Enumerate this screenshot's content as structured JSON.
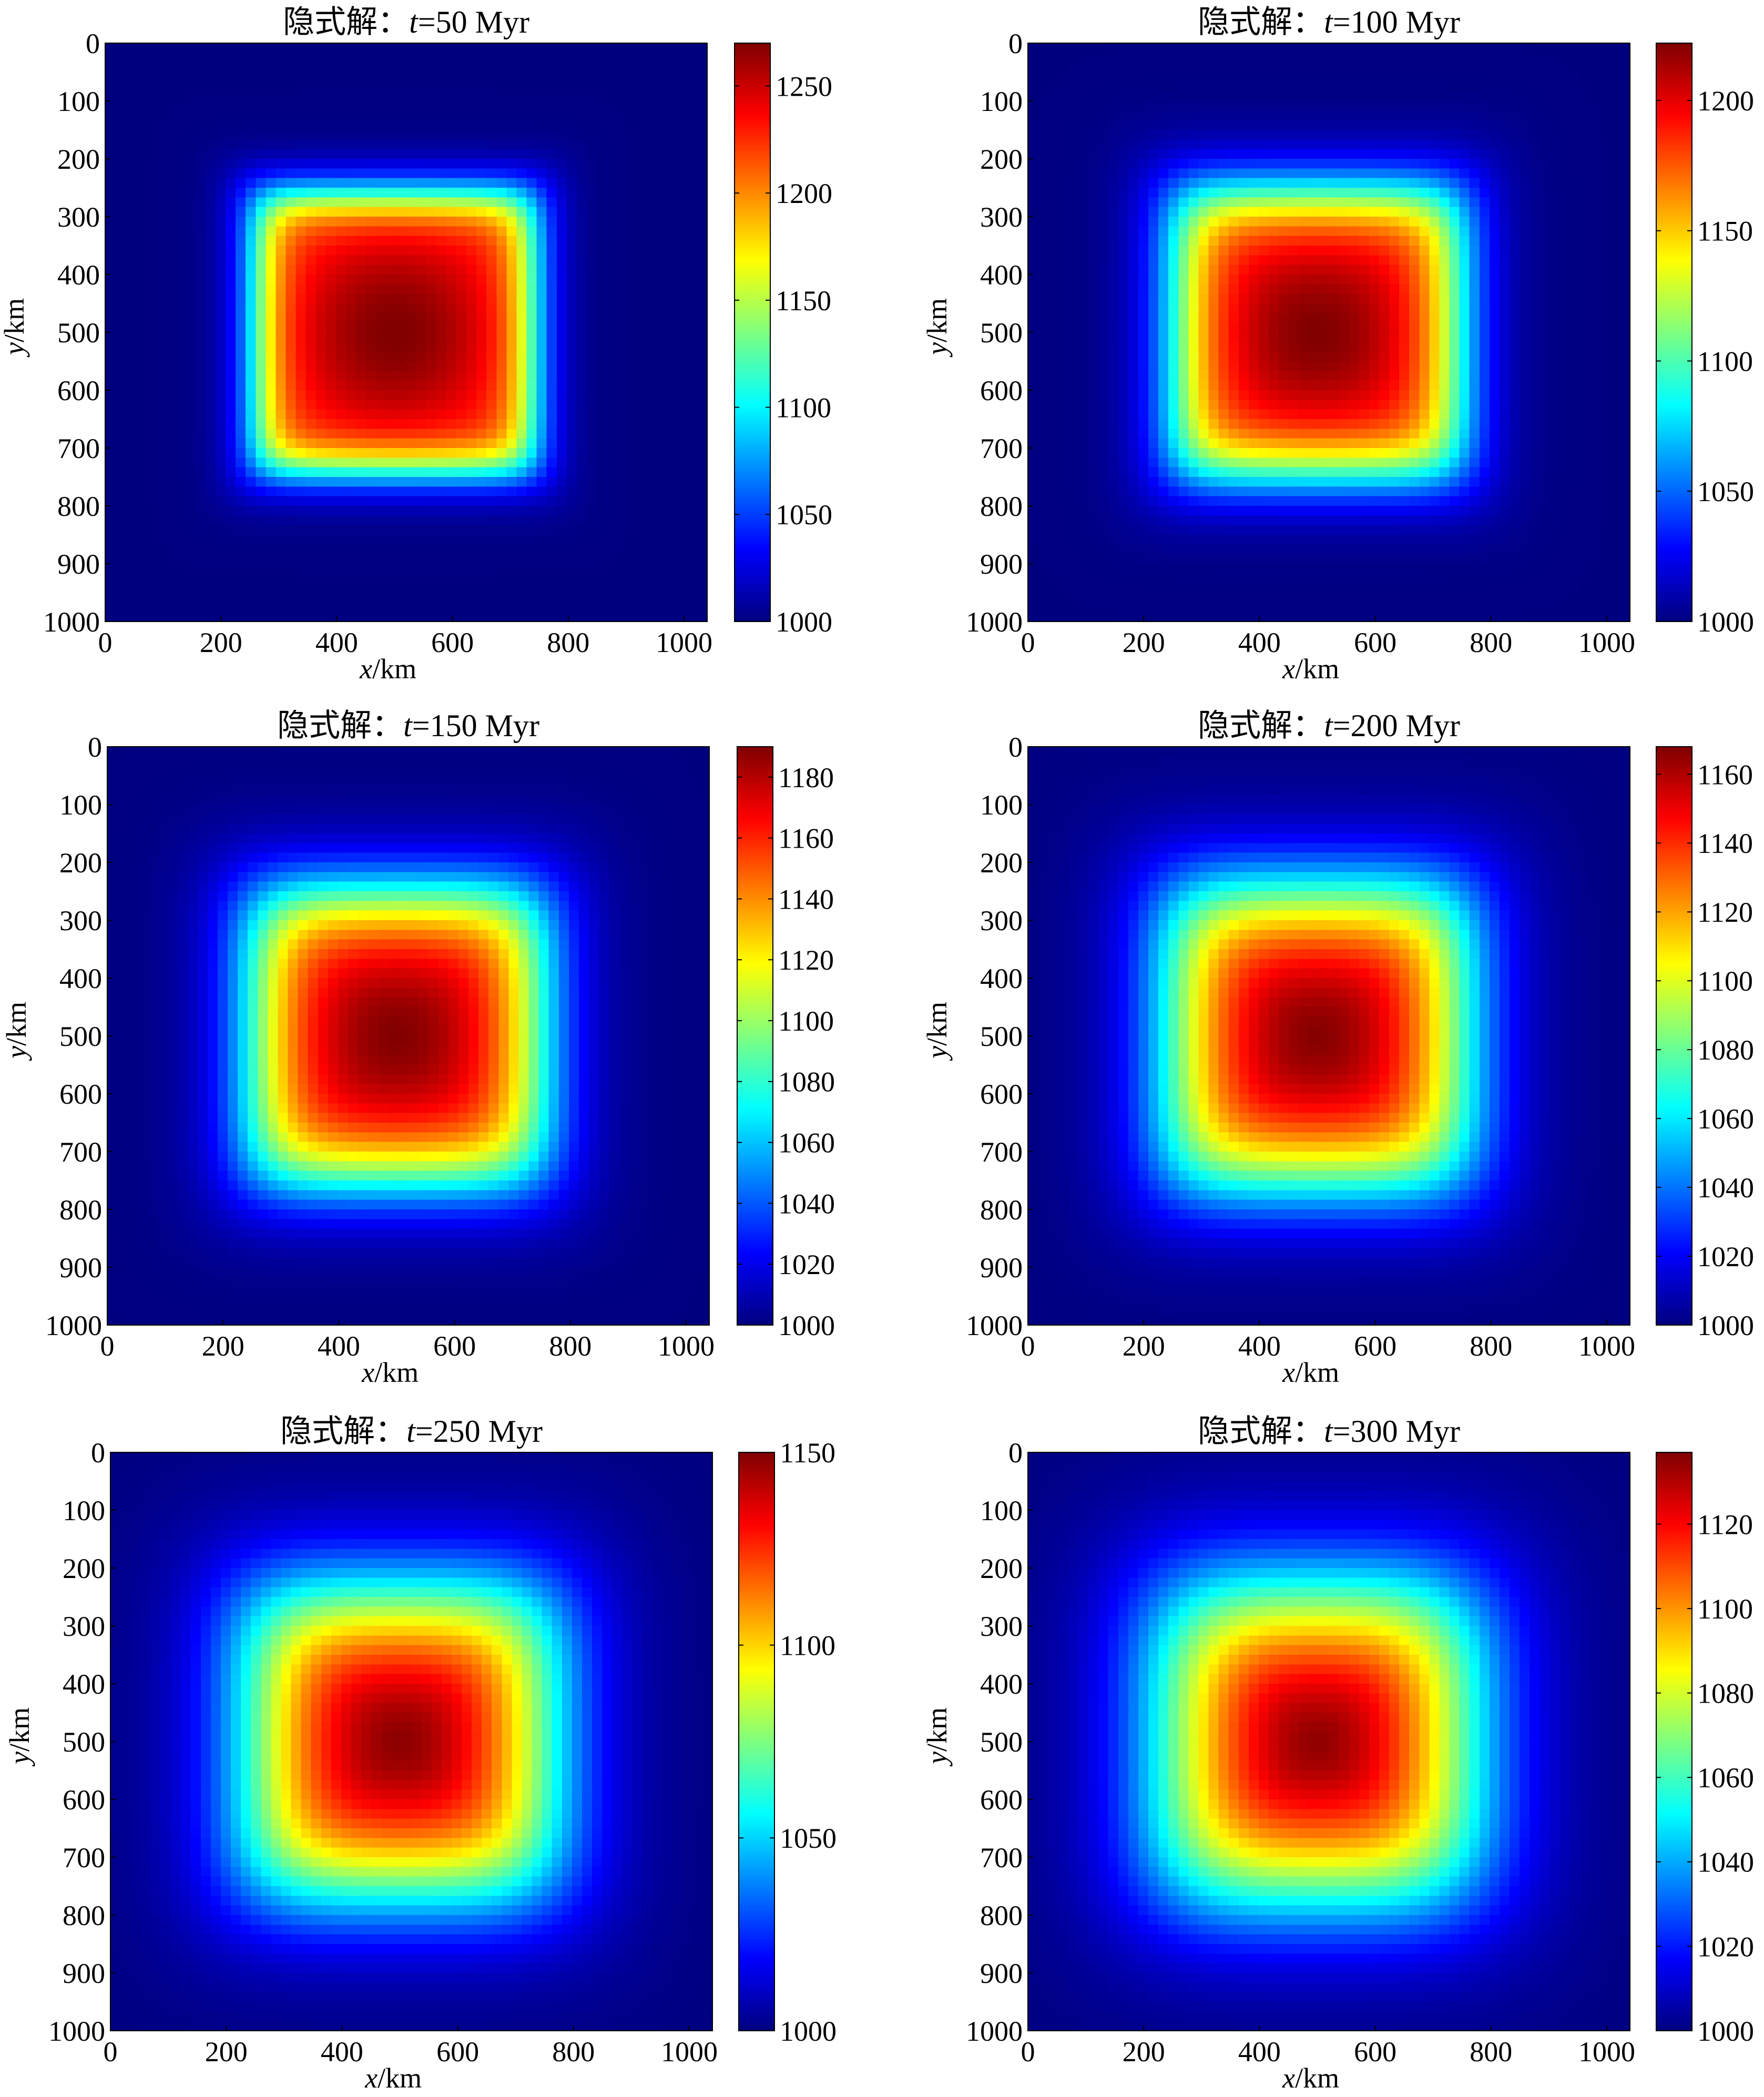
{
  "colormap": "jet",
  "colors": {
    "jet": [
      "#00007f",
      "#0000ff",
      "#007fff",
      "#00ffff",
      "#7fff7f",
      "#ffff00",
      "#ff7f00",
      "#ff0000",
      "#7f0000"
    ],
    "axis": "#000000",
    "background": "#ffffff"
  },
  "chart_data": [
    {
      "type": "heatmap",
      "title_prefix": "隐式解：",
      "title_var": "t",
      "title_value": "=50 Myr",
      "xlabel_var": "x",
      "xlabel_unit": "/km",
      "ylabel_var": "y",
      "ylabel_unit": "/km",
      "xlim": [
        0,
        1040
      ],
      "ylim": [
        1000,
        0
      ],
      "xticks": [
        "0",
        "200",
        "400",
        "600",
        "800",
        "1000"
      ],
      "yticks": [
        "0",
        "100",
        "200",
        "300",
        "400",
        "500",
        "600",
        "700",
        "800",
        "900",
        "1000"
      ],
      "colorbar_range": [
        1000,
        1270
      ],
      "colorbar_ticks": [
        "1000",
        "1050",
        "1100",
        "1150",
        "1200",
        "1250"
      ],
      "field": {
        "center": [
          500,
          500
        ],
        "half_width": 240,
        "p": 8,
        "edge_width": 25,
        "peak": 1270
      }
    },
    {
      "type": "heatmap",
      "title_prefix": "隐式解：",
      "title_var": "t",
      "title_value": "=100 Myr",
      "xlabel_var": "x",
      "xlabel_unit": "/km",
      "ylabel_var": "y",
      "ylabel_unit": "/km",
      "xlim": [
        0,
        1040
      ],
      "ylim": [
        1000,
        0
      ],
      "xticks": [
        "0",
        "200",
        "400",
        "600",
        "800",
        "1000"
      ],
      "yticks": [
        "0",
        "100",
        "200",
        "300",
        "400",
        "500",
        "600",
        "700",
        "800",
        "900",
        "1000"
      ],
      "colorbar_range": [
        1000,
        1222
      ],
      "colorbar_ticks": [
        "1000",
        "1050",
        "1100",
        "1150",
        "1200"
      ],
      "field": {
        "center": [
          500,
          500
        ],
        "half_width": 245,
        "p": 6,
        "edge_width": 35,
        "peak": 1222
      }
    },
    {
      "type": "heatmap",
      "title_prefix": "隐式解：",
      "title_var": "t",
      "title_value": "=150 Myr",
      "xlabel_var": "x",
      "xlabel_unit": "/km",
      "ylabel_var": "y",
      "ylabel_unit": "/km",
      "xlim": [
        0,
        1040
      ],
      "ylim": [
        1000,
        0
      ],
      "xticks": [
        "0",
        "200",
        "400",
        "600",
        "800",
        "1000"
      ],
      "yticks": [
        "0",
        "100",
        "200",
        "300",
        "400",
        "500",
        "600",
        "700",
        "800",
        "900",
        "1000"
      ],
      "colorbar_range": [
        1000,
        1190
      ],
      "colorbar_ticks": [
        "1000",
        "1020",
        "1040",
        "1060",
        "1080",
        "1100",
        "1120",
        "1140",
        "1160",
        "1180"
      ],
      "field": {
        "center": [
          500,
          500
        ],
        "half_width": 250,
        "p": 5,
        "edge_width": 42,
        "peak": 1190
      }
    },
    {
      "type": "heatmap",
      "title_prefix": "隐式解：",
      "title_var": "t",
      "title_value": "=200 Myr",
      "xlabel_var": "x",
      "xlabel_unit": "/km",
      "ylabel_var": "y",
      "ylabel_unit": "/km",
      "xlim": [
        0,
        1040
      ],
      "ylim": [
        1000,
        0
      ],
      "xticks": [
        "0",
        "200",
        "400",
        "600",
        "800",
        "1000"
      ],
      "yticks": [
        "0",
        "100",
        "200",
        "300",
        "400",
        "500",
        "600",
        "700",
        "800",
        "900",
        "1000"
      ],
      "colorbar_range": [
        1000,
        1168
      ],
      "colorbar_ticks": [
        "1000",
        "1020",
        "1040",
        "1060",
        "1080",
        "1100",
        "1120",
        "1140",
        "1160"
      ],
      "field": {
        "center": [
          500,
          500
        ],
        "half_width": 255,
        "p": 4.5,
        "edge_width": 50,
        "peak": 1168
      }
    },
    {
      "type": "heatmap",
      "title_prefix": "隐式解：",
      "title_var": "t",
      "title_value": "=250 Myr",
      "xlabel_var": "x",
      "xlabel_unit": "/km",
      "ylabel_var": "y",
      "ylabel_unit": "/km",
      "xlim": [
        0,
        1040
      ],
      "ylim": [
        1000,
        0
      ],
      "xticks": [
        "0",
        "200",
        "400",
        "600",
        "800",
        "1000"
      ],
      "yticks": [
        "0",
        "100",
        "200",
        "300",
        "400",
        "500",
        "600",
        "700",
        "800",
        "900",
        "1000"
      ],
      "colorbar_range": [
        1000,
        1150
      ],
      "colorbar_ticks": [
        "1000",
        "1050",
        "1100",
        "1150"
      ],
      "field": {
        "center": [
          500,
          500
        ],
        "half_width": 260,
        "p": 4,
        "edge_width": 58,
        "peak": 1150
      }
    },
    {
      "type": "heatmap",
      "title_prefix": "隐式解：",
      "title_var": "t",
      "title_value": "=300 Myr",
      "xlabel_var": "x",
      "xlabel_unit": "/km",
      "ylabel_var": "y",
      "ylabel_unit": "/km",
      "xlim": [
        0,
        1040
      ],
      "ylim": [
        1000,
        0
      ],
      "xticks": [
        "0",
        "200",
        "400",
        "600",
        "800",
        "1000"
      ],
      "yticks": [
        "0",
        "100",
        "200",
        "300",
        "400",
        "500",
        "600",
        "700",
        "800",
        "900",
        "1000"
      ],
      "colorbar_range": [
        1000,
        1137
      ],
      "colorbar_ticks": [
        "1000",
        "1020",
        "1040",
        "1060",
        "1080",
        "1100",
        "1120"
      ],
      "field": {
        "center": [
          500,
          500
        ],
        "half_width": 265,
        "p": 3.6,
        "edge_width": 64,
        "peak": 1137
      }
    }
  ]
}
